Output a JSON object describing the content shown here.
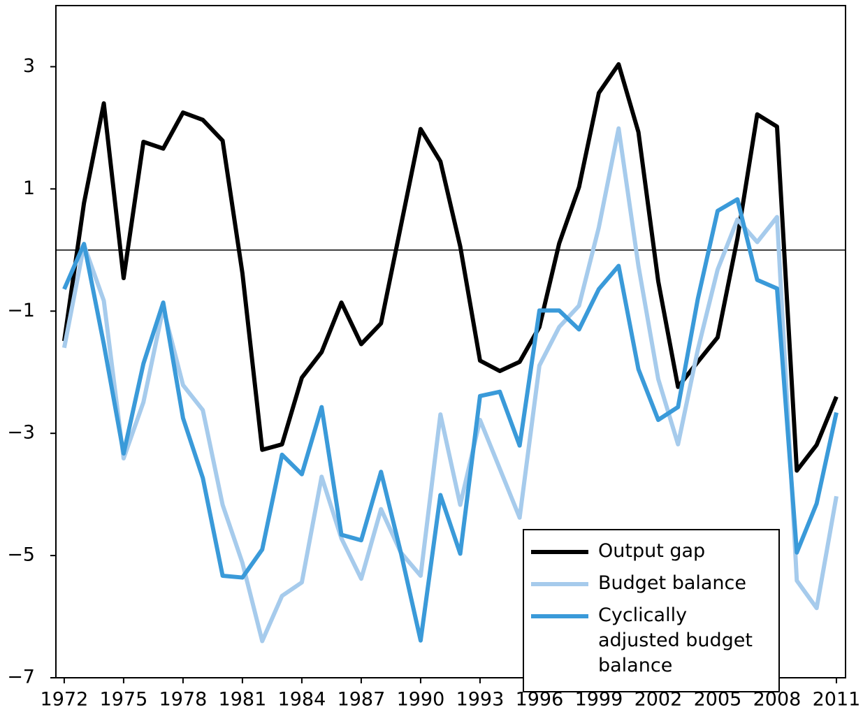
{
  "chart_data": {
    "type": "line",
    "x": [
      1972,
      1973,
      1974,
      1975,
      1976,
      1977,
      1978,
      1979,
      1980,
      1981,
      1982,
      1983,
      1984,
      1985,
      1986,
      1987,
      1988,
      1989,
      1990,
      1991,
      1992,
      1993,
      1994,
      1995,
      1996,
      1997,
      1998,
      1999,
      2000,
      2001,
      2002,
      2003,
      2004,
      2005,
      2006,
      2007,
      2008,
      2009,
      2010,
      2011
    ],
    "series": [
      {
        "name": "Output gap",
        "color": "#000000",
        "values": [
          -1.49,
          0.77,
          2.4,
          -0.46,
          1.77,
          1.66,
          2.25,
          2.13,
          1.79,
          -0.38,
          -3.27,
          -3.18,
          -2.09,
          -1.67,
          -0.86,
          -1.54,
          -1.2,
          0.39,
          1.98,
          1.45,
          0.06,
          -1.81,
          -1.98,
          -1.83,
          -1.26,
          0.11,
          1.03,
          2.57,
          3.04,
          1.93,
          -0.51,
          -2.24,
          -1.83,
          -1.43,
          0.19,
          2.22,
          2.02,
          -3.61,
          -3.19,
          -2.4
        ]
      },
      {
        "name": "Budget balance",
        "color": "#a6cbec",
        "values": [
          -1.6,
          0.08,
          -0.83,
          -3.41,
          -2.49,
          -0.95,
          -2.21,
          -2.62,
          -4.17,
          -5.12,
          -6.4,
          -5.66,
          -5.44,
          -3.71,
          -4.72,
          -5.38,
          -4.24,
          -4.95,
          -5.33,
          -2.69,
          -4.17,
          -2.78,
          -3.58,
          -4.38,
          -1.89,
          -1.26,
          -0.91,
          0.37,
          1.99,
          -0.26,
          -2.11,
          -3.18,
          -1.63,
          -0.32,
          0.5,
          0.13,
          0.54,
          -5.41,
          -5.86,
          -4.03
        ]
      },
      {
        "name": "Cyclically adjusted budget balance",
        "color": "#3a9ad9",
        "values": [
          -0.64,
          0.1,
          -1.54,
          -3.33,
          -1.86,
          -0.86,
          -2.75,
          -3.73,
          -5.33,
          -5.36,
          -4.9,
          -3.35,
          -3.67,
          -2.57,
          -4.66,
          -4.75,
          -3.63,
          -4.95,
          -6.39,
          -4.01,
          -4.97,
          -2.39,
          -2.32,
          -3.2,
          -0.99,
          -0.99,
          -1.3,
          -0.64,
          -0.26,
          -1.95,
          -2.78,
          -2.57,
          -0.8,
          0.64,
          0.83,
          -0.49,
          -0.63,
          -4.95,
          -4.15,
          -2.66
        ]
      }
    ],
    "xlim": [
      1971.58,
      2011.46
    ],
    "xticks": [
      1972,
      1975,
      1978,
      1981,
      1984,
      1987,
      1990,
      1993,
      1996,
      1999,
      2002,
      2005,
      2008,
      2011
    ],
    "ylim": [
      -7,
      4
    ],
    "yticks": [
      {
        "value": -7,
        "label": "−7"
      },
      {
        "value": -5,
        "label": "−5"
      },
      {
        "value": -3,
        "label": "−3"
      },
      {
        "value": -1,
        "label": "−1"
      },
      1,
      3
    ],
    "legend": "lower right"
  }
}
